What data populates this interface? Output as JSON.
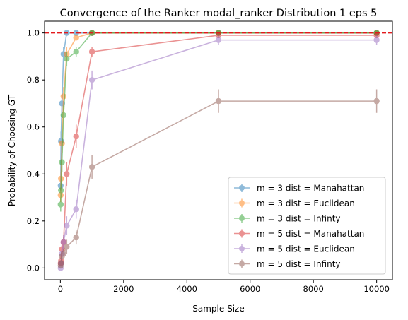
{
  "chart_data": {
    "type": "line",
    "title": "Convergence of the Ranker modal_ranker Distribution 1 eps 5",
    "xlabel": "Sample Size",
    "ylabel": "Probability of Choosing GT",
    "xlim": [
      -500,
      10500
    ],
    "ylim": [
      -0.05,
      1.05
    ],
    "xticks": [
      0,
      2000,
      4000,
      6000,
      8000,
      10000
    ],
    "xtick_labels": [
      "0",
      "2000",
      "4000",
      "6000",
      "8000",
      "10000"
    ],
    "yticks": [
      0.0,
      0.2,
      0.4,
      0.6,
      0.8,
      1.0
    ],
    "ytick_labels": [
      "0.0",
      "0.2",
      "0.4",
      "0.6",
      "0.8",
      "1.0"
    ],
    "grid": false,
    "legend_position": "lower-right",
    "reference_line": {
      "y": 1.0,
      "color": "#e31a1c",
      "style": "dashed"
    },
    "x": [
      10,
      20,
      50,
      100,
      200,
      500,
      1000,
      5000,
      10000
    ],
    "series": [
      {
        "name": "m = 3 dist = Manahattan",
        "color": "#1f77b4",
        "values": [
          0.35,
          0.54,
          0.7,
          0.91,
          1.0,
          1.0,
          1.0,
          1.0,
          1.0
        ],
        "errors": [
          0.02,
          0.04,
          0.04,
          0.03,
          0.0,
          0.0,
          0.0,
          0.0,
          0.0
        ]
      },
      {
        "name": "m = 3 dist = Euclidean",
        "color": "#ff7f0e",
        "values": [
          0.31,
          0.38,
          0.53,
          0.73,
          0.91,
          0.98,
          1.0,
          1.0,
          1.0
        ],
        "errors": [
          0.03,
          0.03,
          0.04,
          0.04,
          0.03,
          0.01,
          0.0,
          0.0,
          0.0
        ]
      },
      {
        "name": "m = 3 dist = Infinty",
        "color": "#2ca02c",
        "values": [
          0.27,
          0.33,
          0.45,
          0.65,
          0.89,
          0.92,
          1.0,
          1.0,
          1.0
        ],
        "errors": [
          0.03,
          0.03,
          0.04,
          0.04,
          0.03,
          0.02,
          0.0,
          0.0,
          0.0
        ]
      },
      {
        "name": "m = 5 dist = Manahattan",
        "color": "#d62728",
        "values": [
          0.02,
          0.03,
          0.08,
          0.11,
          0.4,
          0.56,
          0.92,
          0.99,
          0.99
        ],
        "errors": [
          0.01,
          0.02,
          0.02,
          0.02,
          0.05,
          0.05,
          0.02,
          0.01,
          0.01
        ]
      },
      {
        "name": "m = 5 dist = Euclidean",
        "color": "#9467bd",
        "values": [
          0.0,
          0.02,
          0.06,
          0.11,
          0.18,
          0.25,
          0.8,
          0.97,
          0.97
        ],
        "errors": [
          0.01,
          0.01,
          0.02,
          0.03,
          0.04,
          0.04,
          0.04,
          0.02,
          0.02
        ]
      },
      {
        "name": "m = 5 dist = Infinty",
        "color": "#8c564b",
        "values": [
          0.01,
          0.02,
          0.05,
          0.06,
          0.09,
          0.13,
          0.43,
          0.71,
          0.71
        ],
        "errors": [
          0.01,
          0.01,
          0.02,
          0.02,
          0.03,
          0.03,
          0.05,
          0.05,
          0.05
        ]
      }
    ]
  }
}
